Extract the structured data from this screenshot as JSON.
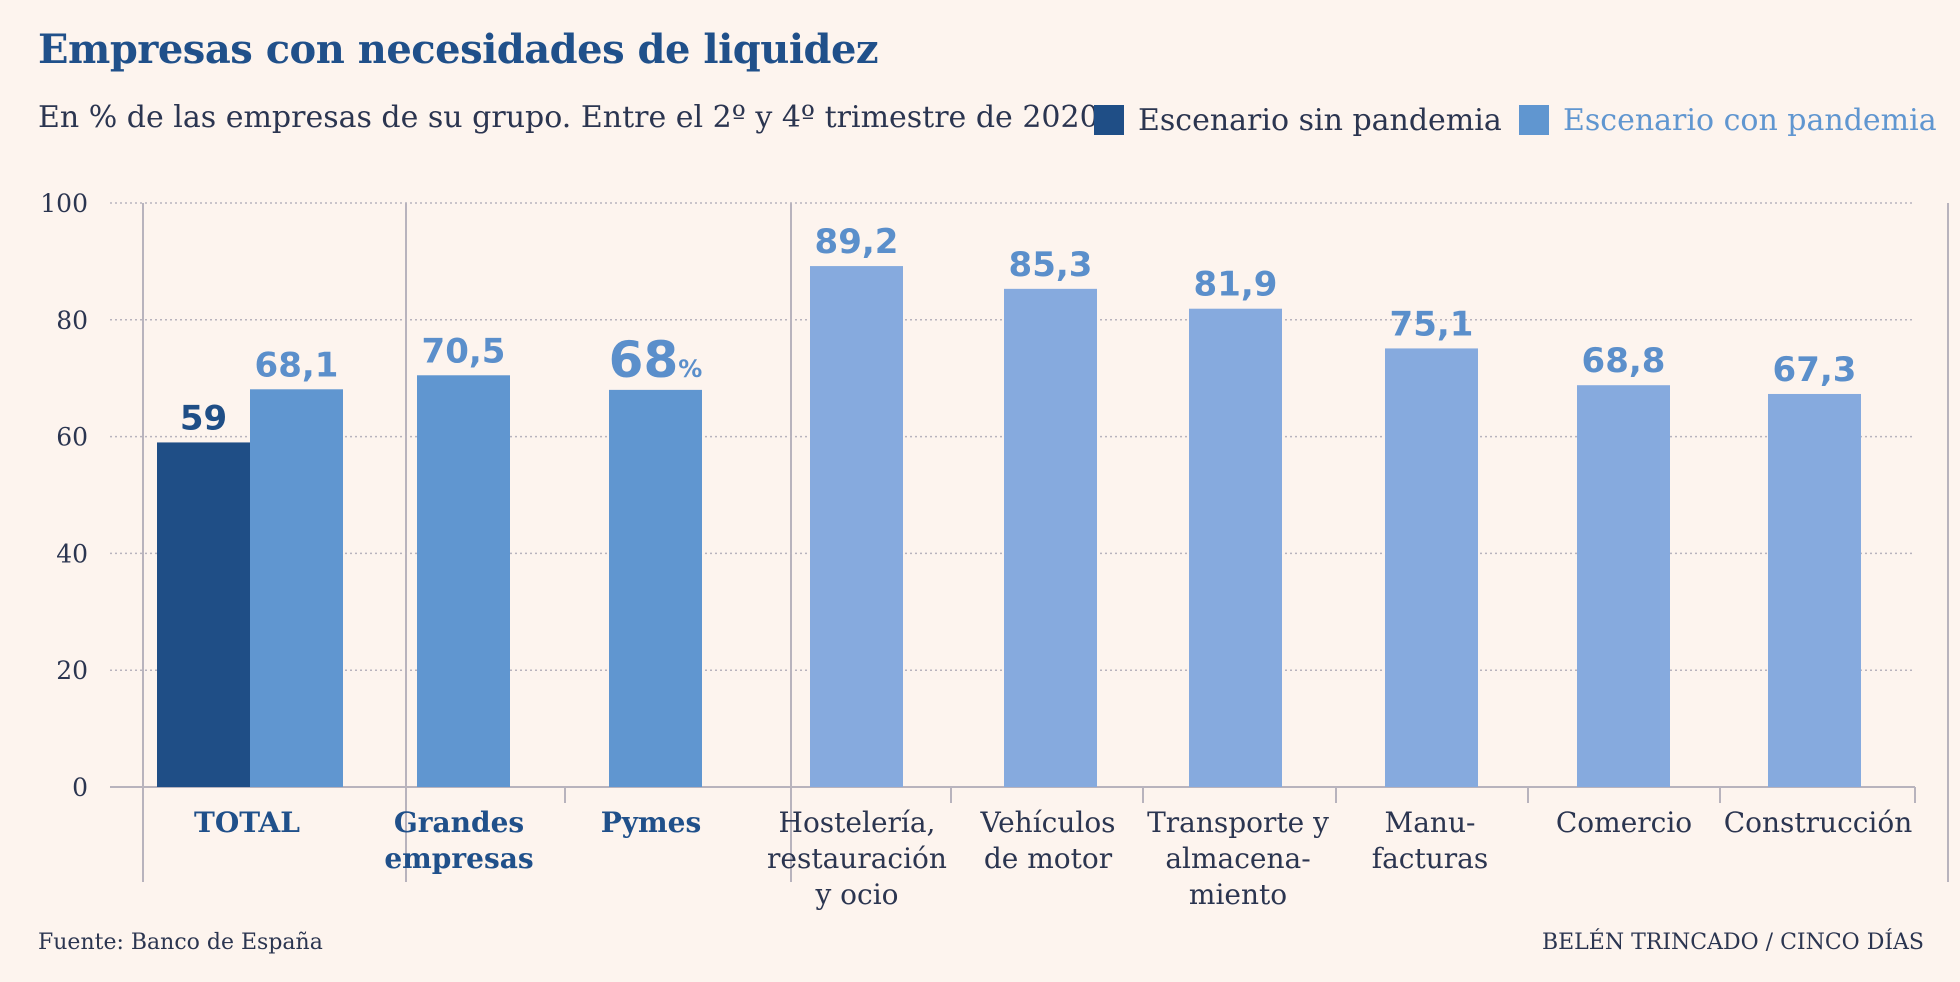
{
  "title": "Empresas con necesidades de liquidez",
  "subtitle": "En % de las empresas de su grupo. Entre el 2º y 4º trimestre de 2020",
  "source": "Fuente: Banco de España",
  "credit": "BELÉN TRINCADO / CINCO DÍAS",
  "colors": {
    "sin_pandemia": "#1f4e86",
    "con_pandemia_groups": "#6096d0",
    "con_pandemia_sectors": "#86aade",
    "con_pandemia_text": "#5b8fcb",
    "axis": "#b8b3bd",
    "grid": "#b8b3bd",
    "text": "#2b3550"
  },
  "chart_data": {
    "type": "bar",
    "ylim": [
      0,
      100
    ],
    "yticks": [
      0,
      20,
      40,
      60,
      80,
      100
    ],
    "grid": true,
    "legend_position": "top-right",
    "series": [
      {
        "name": "Escenario sin pandemia"
      },
      {
        "name": "Escenario con pandemia"
      }
    ],
    "categories": [
      {
        "label": [
          "TOTAL"
        ],
        "bold": true,
        "values": [
          {
            "series": 0,
            "value": 59,
            "label": "59"
          },
          {
            "series": 1,
            "value": 68.1,
            "label": "68,1"
          }
        ]
      },
      {
        "label": [
          "Grandes",
          "empresas"
        ],
        "bold": true,
        "values": [
          {
            "series": 1,
            "value": 70.5,
            "label": "70,5"
          }
        ]
      },
      {
        "label": [
          "Pymes"
        ],
        "bold": true,
        "values": [
          {
            "series": 1,
            "value": 68,
            "label": "68",
            "unit": "%"
          }
        ]
      },
      {
        "label": [
          "Hostelería,",
          "restauración",
          "y ocio"
        ],
        "bold": false,
        "values": [
          {
            "series": 1,
            "value": 89.2,
            "label": "89,2"
          }
        ]
      },
      {
        "label": [
          "Vehículos",
          "de motor"
        ],
        "bold": false,
        "values": [
          {
            "series": 1,
            "value": 85.3,
            "label": "85,3"
          }
        ]
      },
      {
        "label": [
          "Transporte y",
          "almacena-",
          "miento"
        ],
        "bold": false,
        "values": [
          {
            "series": 1,
            "value": 81.9,
            "label": "81,9"
          }
        ]
      },
      {
        "label": [
          "Manu-",
          "facturas"
        ],
        "bold": false,
        "values": [
          {
            "series": 1,
            "value": 75.1,
            "label": "75,1"
          }
        ]
      },
      {
        "label": [
          "Comercio"
        ],
        "bold": false,
        "values": [
          {
            "series": 1,
            "value": 68.8,
            "label": "68,8"
          }
        ]
      },
      {
        "label": [
          "Construcción"
        ],
        "bold": false,
        "values": [
          {
            "series": 1,
            "value": 67.3,
            "label": "67,3"
          }
        ]
      }
    ]
  }
}
